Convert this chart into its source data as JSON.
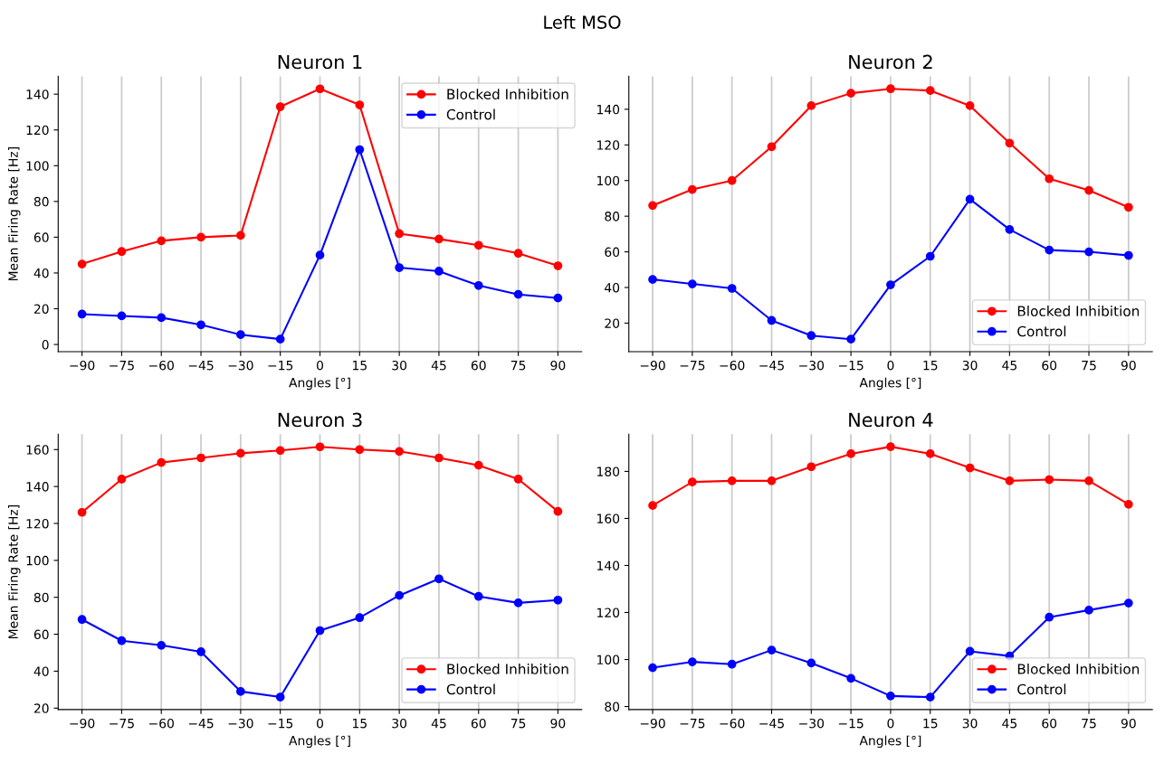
{
  "chart_data": [
    {
      "type": "line",
      "title": "Neuron 1",
      "xlabel": "Angles [°]",
      "ylabel": "Mean Firing Rate [Hz]",
      "subtitle": "Left MSO",
      "x": [
        -90,
        -75,
        -60,
        -45,
        -30,
        -15,
        0,
        15,
        30,
        45,
        60,
        75,
        90
      ],
      "xlim": [
        -99,
        99
      ],
      "xticks": [
        -90,
        -75,
        -60,
        -45,
        -30,
        -15,
        0,
        15,
        30,
        45,
        60,
        75,
        90
      ],
      "ylim": [
        -4,
        150
      ],
      "yticks": [
        0,
        20,
        40,
        60,
        80,
        100,
        120,
        140
      ],
      "grid": "x",
      "legend": "top right",
      "marker": "circle",
      "line_style": "solid",
      "series": [
        {
          "name": "Blocked Inhibition",
          "color": "#ff0000",
          "values": [
            45,
            52,
            58,
            60,
            61,
            133,
            143,
            134,
            62,
            59,
            55.5,
            51,
            44
          ]
        },
        {
          "name": "Control",
          "color": "#0000ff",
          "values": [
            17,
            16,
            15,
            11,
            5.5,
            3,
            50,
            109,
            43,
            41,
            33,
            28,
            26
          ]
        }
      ]
    },
    {
      "type": "line",
      "title": "Neuron 2",
      "xlabel": "Angles [°]",
      "x": [
        -90,
        -75,
        -60,
        -45,
        -30,
        -15,
        0,
        15,
        30,
        45,
        60,
        75,
        90
      ],
      "xlim": [
        -99,
        99
      ],
      "xticks": [
        -90,
        -75,
        -60,
        -45,
        -30,
        -15,
        0,
        15,
        30,
        45,
        60,
        75,
        90
      ],
      "ylim": [
        4,
        158.5
      ],
      "yticks": [
        20,
        40,
        60,
        80,
        100,
        120,
        140
      ],
      "grid": "x",
      "legend": "bottom right",
      "marker": "circle",
      "line_style": "solid",
      "series": [
        {
          "name": "Blocked Inhibition",
          "color": "#ff0000",
          "values": [
            86,
            95,
            100,
            119,
            142,
            149,
            151.5,
            150.5,
            142,
            121,
            101,
            94.5,
            85
          ]
        },
        {
          "name": "Control",
          "color": "#0000ff",
          "values": [
            44.5,
            42,
            39.5,
            21.5,
            13,
            11,
            41.5,
            57.5,
            89.5,
            72.5,
            61,
            60,
            58
          ]
        }
      ]
    },
    {
      "type": "line",
      "title": "Neuron 3",
      "xlabel": "Angles [°]",
      "ylabel": "Mean Firing Rate [Hz]",
      "x": [
        -90,
        -75,
        -60,
        -45,
        -30,
        -15,
        0,
        15,
        30,
        45,
        60,
        75,
        90
      ],
      "xlim": [
        -99,
        99
      ],
      "xticks": [
        -90,
        -75,
        -60,
        -45,
        -30,
        -15,
        0,
        15,
        30,
        45,
        60,
        75,
        90
      ],
      "ylim": [
        19.2,
        168.3
      ],
      "yticks": [
        20,
        40,
        60,
        80,
        100,
        120,
        140,
        160
      ],
      "grid": "x",
      "legend": "bottom right",
      "marker": "circle",
      "line_style": "solid",
      "series": [
        {
          "name": "Blocked Inhibition",
          "color": "#ff0000",
          "values": [
            126,
            144,
            153,
            155.5,
            158,
            159.5,
            161.5,
            160,
            159,
            155.5,
            151.5,
            144,
            126.5
          ]
        },
        {
          "name": "Control",
          "color": "#0000ff",
          "values": [
            68,
            56.5,
            54,
            50.5,
            29,
            26,
            62,
            69,
            81,
            90,
            80.5,
            77,
            78.5
          ]
        }
      ]
    },
    {
      "type": "line",
      "title": "Neuron 4",
      "xlabel": "Angles [°]",
      "x": [
        -90,
        -75,
        -60,
        -45,
        -30,
        -15,
        0,
        15,
        30,
        45,
        60,
        75,
        90
      ],
      "xlim": [
        -99,
        99
      ],
      "xticks": [
        -90,
        -75,
        -60,
        -45,
        -30,
        -15,
        0,
        15,
        30,
        45,
        60,
        75,
        90
      ],
      "ylim": [
        78.7,
        195.8
      ],
      "yticks": [
        80,
        100,
        120,
        140,
        160,
        180
      ],
      "grid": "x",
      "legend": "bottom right",
      "marker": "circle",
      "line_style": "solid",
      "series": [
        {
          "name": "Blocked Inhibition",
          "color": "#ff0000",
          "values": [
            165.5,
            175.5,
            176,
            176,
            182,
            187.5,
            190.5,
            187.5,
            181.5,
            176,
            176.5,
            176,
            166
          ]
        },
        {
          "name": "Control",
          "color": "#0000ff",
          "values": [
            96.5,
            99,
            98,
            104,
            98.5,
            92,
            84.5,
            84,
            103.5,
            101.5,
            118,
            121,
            124
          ]
        }
      ]
    }
  ]
}
